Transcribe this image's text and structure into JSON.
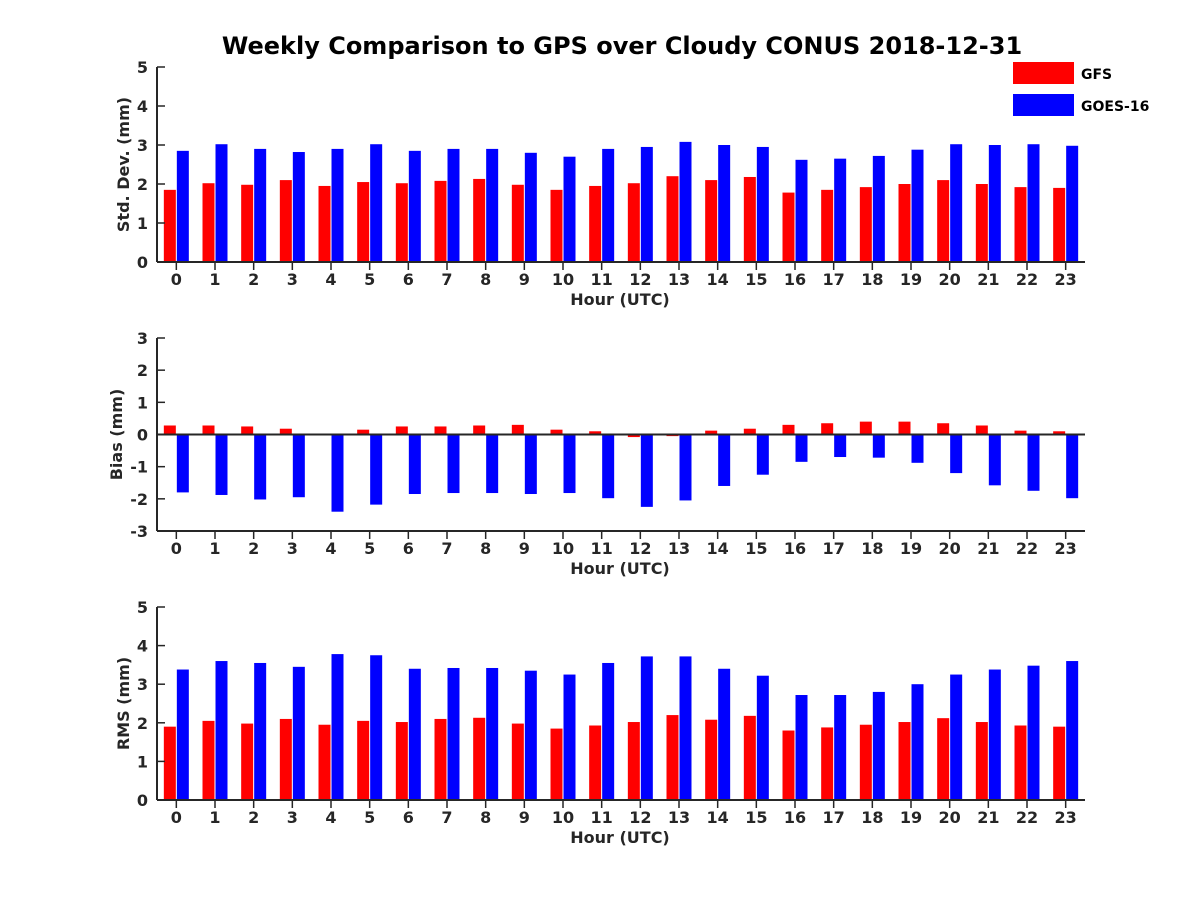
{
  "title": "Weekly Comparison to GPS over Cloudy CONUS 2018-12-31",
  "legend": [
    {
      "name": "GFS",
      "color": "#ff0000"
    },
    {
      "name": "GOES-16",
      "color": "#0000ff"
    }
  ],
  "chart_data": [
    {
      "type": "bar",
      "xlabel": "Hour (UTC)",
      "ylabel": "Std. Dev. (mm)",
      "ylim": [
        0,
        5
      ],
      "yticks": [
        0,
        1,
        2,
        3,
        4,
        5
      ],
      "categories": [
        "0",
        "1",
        "2",
        "3",
        "4",
        "5",
        "6",
        "7",
        "8",
        "9",
        "10",
        "11",
        "12",
        "13",
        "14",
        "15",
        "16",
        "17",
        "18",
        "19",
        "20",
        "21",
        "22",
        "23"
      ],
      "series": [
        {
          "name": "GFS",
          "color": "#ff0000",
          "values": [
            1.85,
            2.02,
            1.98,
            2.1,
            1.95,
            2.05,
            2.02,
            2.08,
            2.13,
            1.98,
            1.85,
            1.95,
            2.02,
            2.2,
            2.1,
            2.18,
            1.78,
            1.85,
            1.92,
            2.0,
            2.1,
            2.0,
            1.92,
            1.9
          ]
        },
        {
          "name": "GOES-16",
          "color": "#0000ff",
          "values": [
            2.85,
            3.02,
            2.9,
            2.82,
            2.9,
            3.02,
            2.85,
            2.9,
            2.9,
            2.8,
            2.7,
            2.9,
            2.95,
            3.08,
            3.0,
            2.95,
            2.62,
            2.65,
            2.72,
            2.88,
            3.02,
            3.0,
            3.02,
            2.98
          ]
        }
      ]
    },
    {
      "type": "bar",
      "xlabel": "Hour (UTC)",
      "ylabel": "Bias (mm)",
      "ylim": [
        -3,
        3
      ],
      "yticks": [
        -3,
        -2,
        -1,
        0,
        1,
        2,
        3
      ],
      "zero_line": true,
      "categories": [
        "0",
        "1",
        "2",
        "3",
        "4",
        "5",
        "6",
        "7",
        "8",
        "9",
        "10",
        "11",
        "12",
        "13",
        "14",
        "15",
        "16",
        "17",
        "18",
        "19",
        "20",
        "21",
        "22",
        "23"
      ],
      "series": [
        {
          "name": "GFS",
          "color": "#ff0000",
          "values": [
            0.28,
            0.28,
            0.25,
            0.18,
            0.02,
            0.15,
            0.25,
            0.25,
            0.28,
            0.3,
            0.15,
            0.1,
            -0.08,
            -0.05,
            0.12,
            0.18,
            0.3,
            0.35,
            0.4,
            0.4,
            0.35,
            0.28,
            0.12,
            0.1
          ]
        },
        {
          "name": "GOES-16",
          "color": "#0000ff",
          "values": [
            -1.8,
            -1.88,
            -2.02,
            -1.95,
            -2.4,
            -2.18,
            -1.85,
            -1.82,
            -1.82,
            -1.85,
            -1.82,
            -1.98,
            -2.25,
            -2.05,
            -1.6,
            -1.25,
            -0.85,
            -0.7,
            -0.72,
            -0.88,
            -1.2,
            -1.58,
            -1.75,
            -1.98
          ]
        }
      ]
    },
    {
      "type": "bar",
      "xlabel": "Hour (UTC)",
      "ylabel": "RMS (mm)",
      "ylim": [
        0,
        5
      ],
      "yticks": [
        0,
        1,
        2,
        3,
        4,
        5
      ],
      "categories": [
        "0",
        "1",
        "2",
        "3",
        "4",
        "5",
        "6",
        "7",
        "8",
        "9",
        "10",
        "11",
        "12",
        "13",
        "14",
        "15",
        "16",
        "17",
        "18",
        "19",
        "20",
        "21",
        "22",
        "23"
      ],
      "series": [
        {
          "name": "GFS",
          "color": "#ff0000",
          "values": [
            1.9,
            2.05,
            1.98,
            2.1,
            1.95,
            2.05,
            2.02,
            2.1,
            2.13,
            1.98,
            1.85,
            1.93,
            2.02,
            2.2,
            2.08,
            2.18,
            1.8,
            1.88,
            1.95,
            2.02,
            2.12,
            2.02,
            1.93,
            1.9
          ]
        },
        {
          "name": "GOES-16",
          "color": "#0000ff",
          "values": [
            3.38,
            3.6,
            3.55,
            3.45,
            3.78,
            3.75,
            3.4,
            3.42,
            3.42,
            3.35,
            3.25,
            3.55,
            3.72,
            3.72,
            3.4,
            3.22,
            2.72,
            2.72,
            2.8,
            3.0,
            3.25,
            3.38,
            3.48,
            3.6
          ]
        }
      ]
    }
  ]
}
